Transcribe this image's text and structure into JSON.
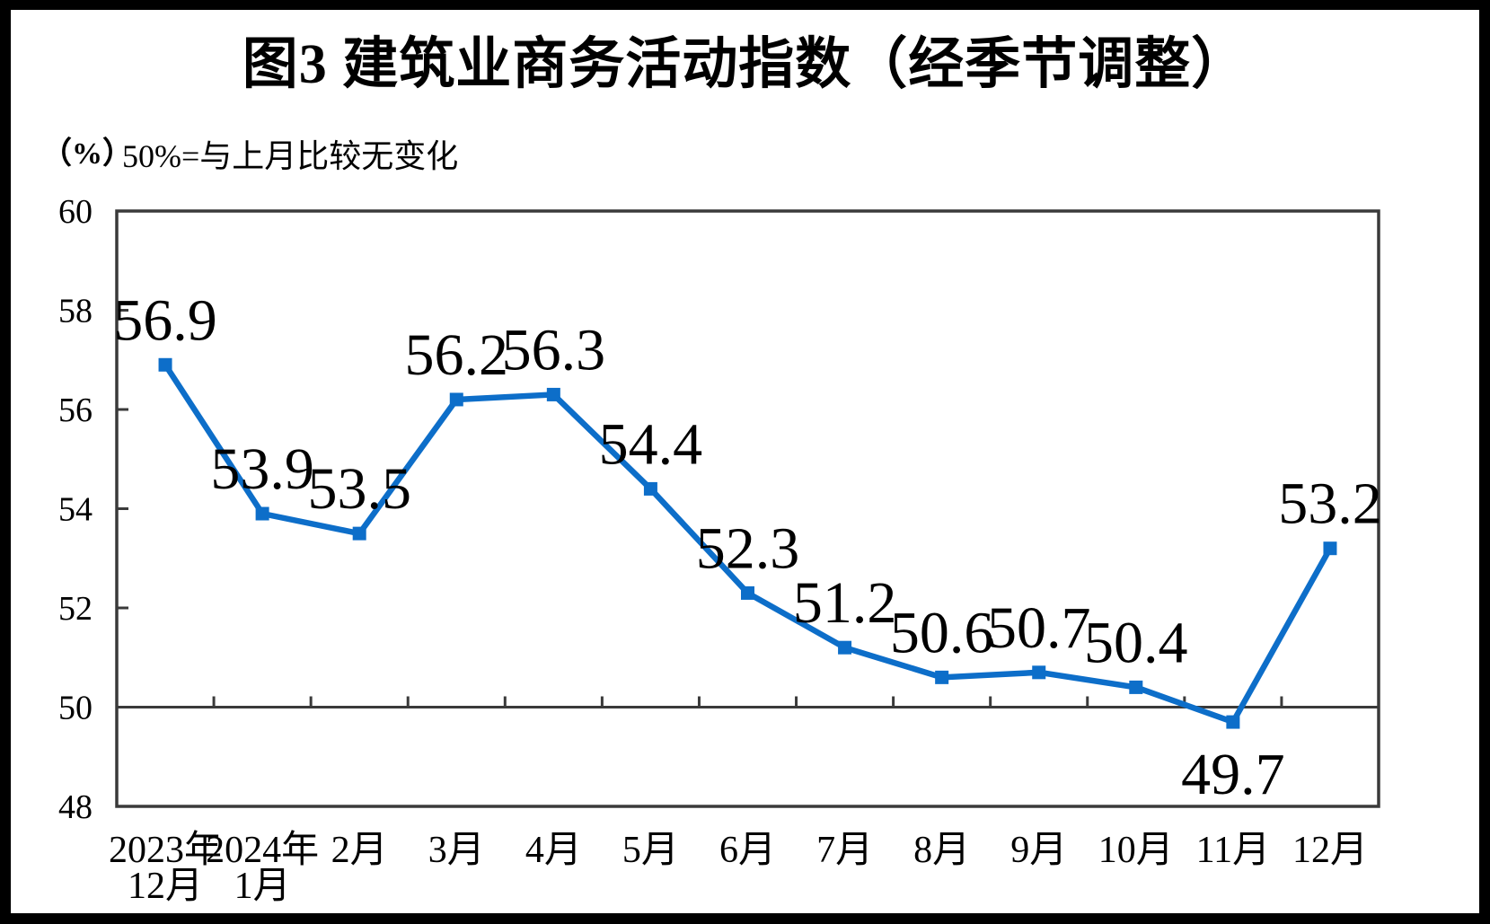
{
  "figure": {
    "title": "图3  建筑业商务活动指数（经季节调整）",
    "unit_label": "（%）",
    "note": "50%=与上月比较无变化"
  },
  "chart_data": {
    "type": "line",
    "title": "图3  建筑业商务活动指数（经季节调整）",
    "subtitle": "50%=与上月比较无变化",
    "ylabel": "（%）",
    "xlabel": "",
    "categories": [
      [
        "2023年",
        "12月"
      ],
      [
        "2024年",
        "1月"
      ],
      [
        "2月"
      ],
      [
        "3月"
      ],
      [
        "4月"
      ],
      [
        "5月"
      ],
      [
        "6月"
      ],
      [
        "7月"
      ],
      [
        "8月"
      ],
      [
        "9月"
      ],
      [
        "10月"
      ],
      [
        "11月"
      ],
      [
        "12月"
      ]
    ],
    "series": [
      {
        "name": "建筑业商务活动指数",
        "values": [
          56.9,
          53.9,
          53.5,
          56.2,
          56.3,
          54.4,
          52.3,
          51.2,
          50.6,
          50.7,
          50.4,
          49.7,
          53.2
        ]
      }
    ],
    "data_labels": [
      "56.9",
      "53.9",
      "53.5",
      "56.2",
      "56.3",
      "54.4",
      "52.3",
      "51.2",
      "50.6",
      "50.7",
      "50.4",
      "49.7",
      "53.2"
    ],
    "label_below_indices": [
      11
    ],
    "ylim": [
      48,
      60
    ],
    "yticks": [
      60,
      58,
      56,
      54,
      52,
      50,
      48
    ],
    "reference_line_value": 50,
    "grid": false,
    "legend_position": "none",
    "marker": "square",
    "colors": {
      "series": "#0d6ec9",
      "axis": "#3a3a3a",
      "text": "#000000",
      "background": "#ffffff",
      "frame": "#000000"
    }
  }
}
